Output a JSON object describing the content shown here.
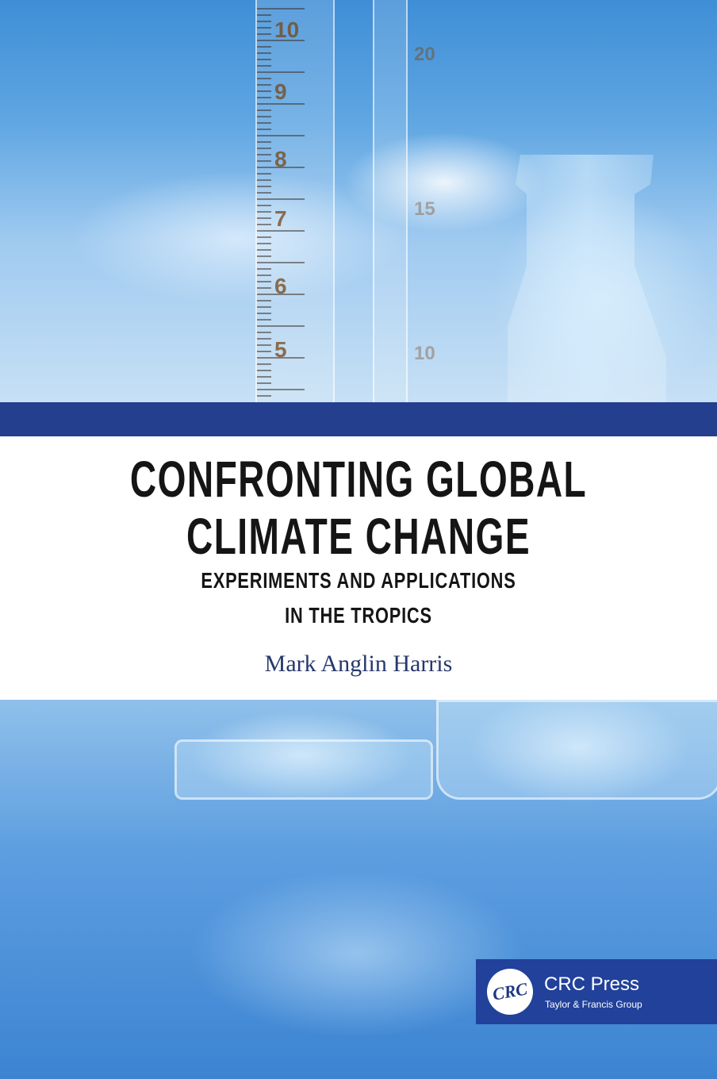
{
  "cover": {
    "title_line1": "CONFRONTING GLOBAL",
    "title_line2": "CLIMATE CHANGE",
    "subtitle_line1": "EXPERIMENTS AND APPLICATIONS",
    "subtitle_line2": "IN THE TROPICS",
    "author": "Mark Anglin Harris"
  },
  "photo": {
    "cylinder_numbers": [
      "10",
      "9",
      "8",
      "7",
      "6",
      "5"
    ],
    "pipette_numbers": [
      "20",
      "15",
      "10"
    ]
  },
  "publisher": {
    "emblem": "CRC",
    "name": "CRC Press",
    "group": "Taylor & Francis Group"
  },
  "colors": {
    "band": "#233f8e",
    "author": "#26386c",
    "logo_bg": "#22419b"
  }
}
